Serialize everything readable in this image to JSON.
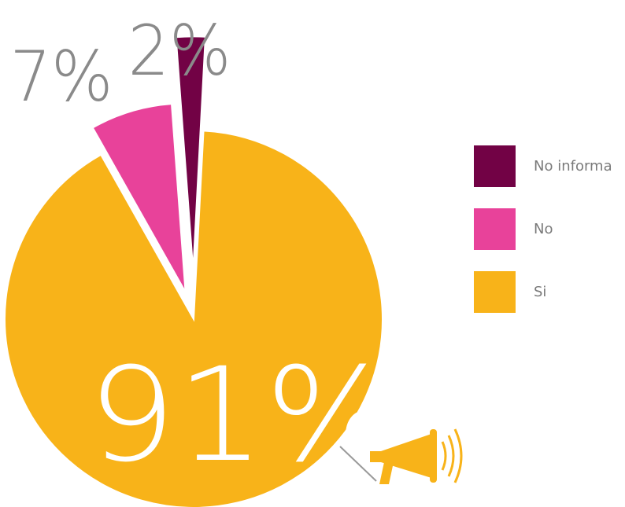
{
  "chart_data": {
    "type": "pie",
    "title": "",
    "slices": [
      {
        "label": "Si",
        "value": 91,
        "display": "91%",
        "color": "#F8B319"
      },
      {
        "label": "No",
        "value": 7,
        "display": "7%",
        "color": "#E8429A"
      },
      {
        "label": "No informa",
        "value": 2,
        "display": "2%",
        "color": "#720245"
      }
    ],
    "legend_position": "right",
    "legend_order": [
      "No informa",
      "No",
      "Si"
    ]
  },
  "icons": {
    "megaphone": "megaphone-icon",
    "megaphone_color": "#F8B319"
  }
}
